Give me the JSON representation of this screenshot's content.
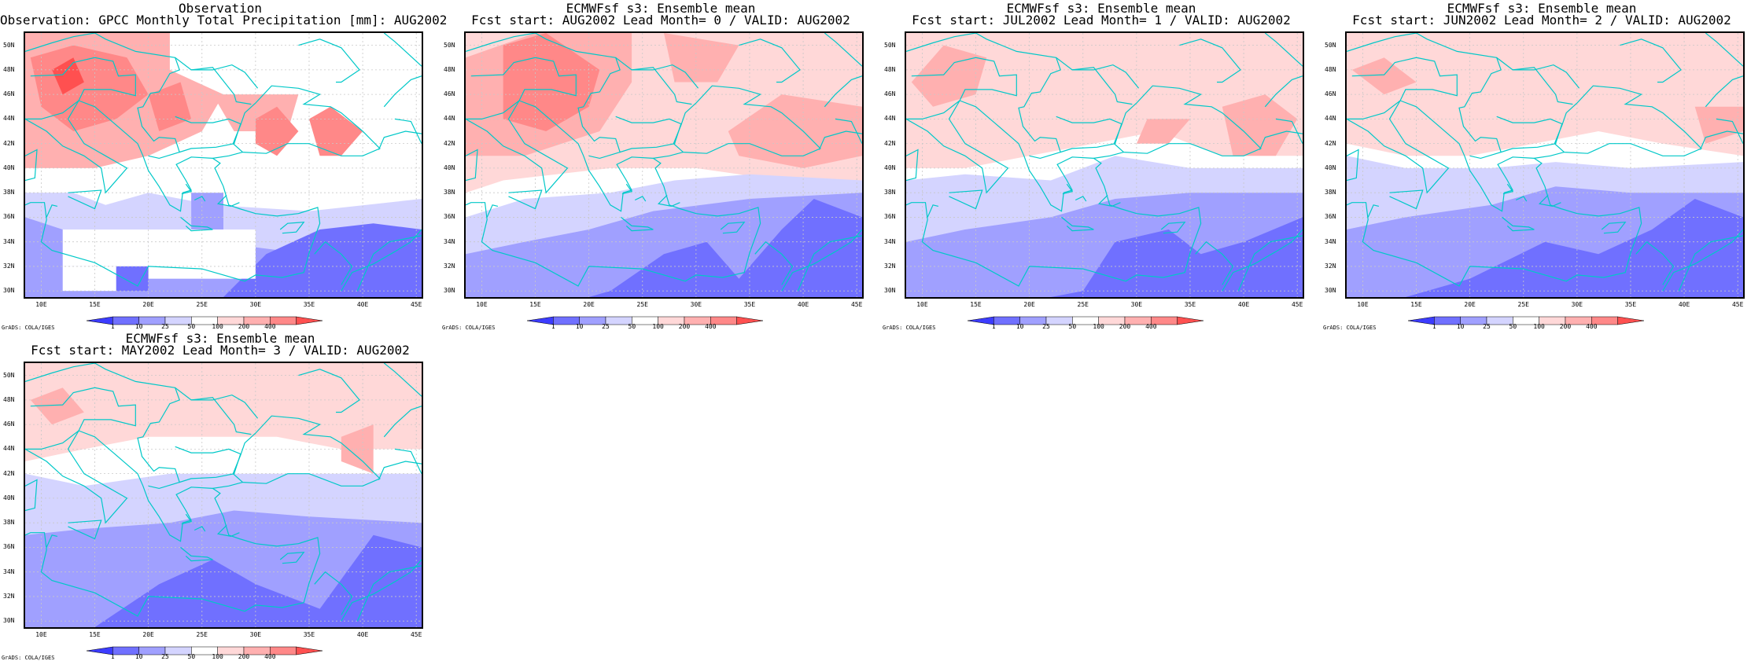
{
  "panels": [
    {
      "title1": "Observation",
      "title2": "Observation: GPCC Monthly Total Precipitation [mm]: AUG2002",
      "variant": "obs"
    },
    {
      "title1": "ECMWFsf s3: Ensemble mean",
      "title2": "Fcst start: AUG2002  Lead Month= 0 / VALID: AUG2002",
      "variant": "lead0"
    },
    {
      "title1": "ECMWFsf s3: Ensemble mean",
      "title2": "Fcst start: JUL2002  Lead Month= 1 / VALID: AUG2002",
      "variant": "lead1"
    },
    {
      "title1": "ECMWFsf s3: Ensemble mean",
      "title2": "Fcst start: JUN2002  Lead Month= 2 / VALID: AUG2002",
      "variant": "lead2"
    },
    {
      "title1": "ECMWFsf s3: Ensemble mean",
      "title2": "Fcst start: MAY2002  Lead Month= 3 / VALID: AUG2002",
      "variant": "lead3"
    }
  ],
  "lat_labels": [
    "50N",
    "48N",
    "46N",
    "44N",
    "42N",
    "40N",
    "38N",
    "36N",
    "34N",
    "32N",
    "30N"
  ],
  "lon_labels": [
    "10E",
    "15E",
    "20E",
    "25E",
    "30E",
    "35E",
    "40E",
    "45E"
  ],
  "lat_values": [
    50,
    48,
    46,
    44,
    42,
    40,
    38,
    36,
    34,
    32,
    30
  ],
  "lon_values": [
    10,
    15,
    20,
    25,
    30,
    35,
    40,
    45
  ],
  "extent": {
    "lon": [
      8.5,
      45.5
    ],
    "lat": [
      29.5,
      51.0
    ]
  },
  "colorbar": {
    "labels": [
      "1",
      "10",
      "25",
      "50",
      "100",
      "200",
      "400"
    ],
    "colors": [
      "#3c3cff",
      "#7070ff",
      "#a0a0ff",
      "#d4d4ff",
      "#ffffff",
      "#ffd8d8",
      "#ffb0b0",
      "#ff8888",
      "#ff5050"
    ]
  },
  "colors": {
    "coast": "#00c8c8",
    "grid": "#c8c8c8"
  },
  "credit": "GrADS: COLA/IGES"
}
